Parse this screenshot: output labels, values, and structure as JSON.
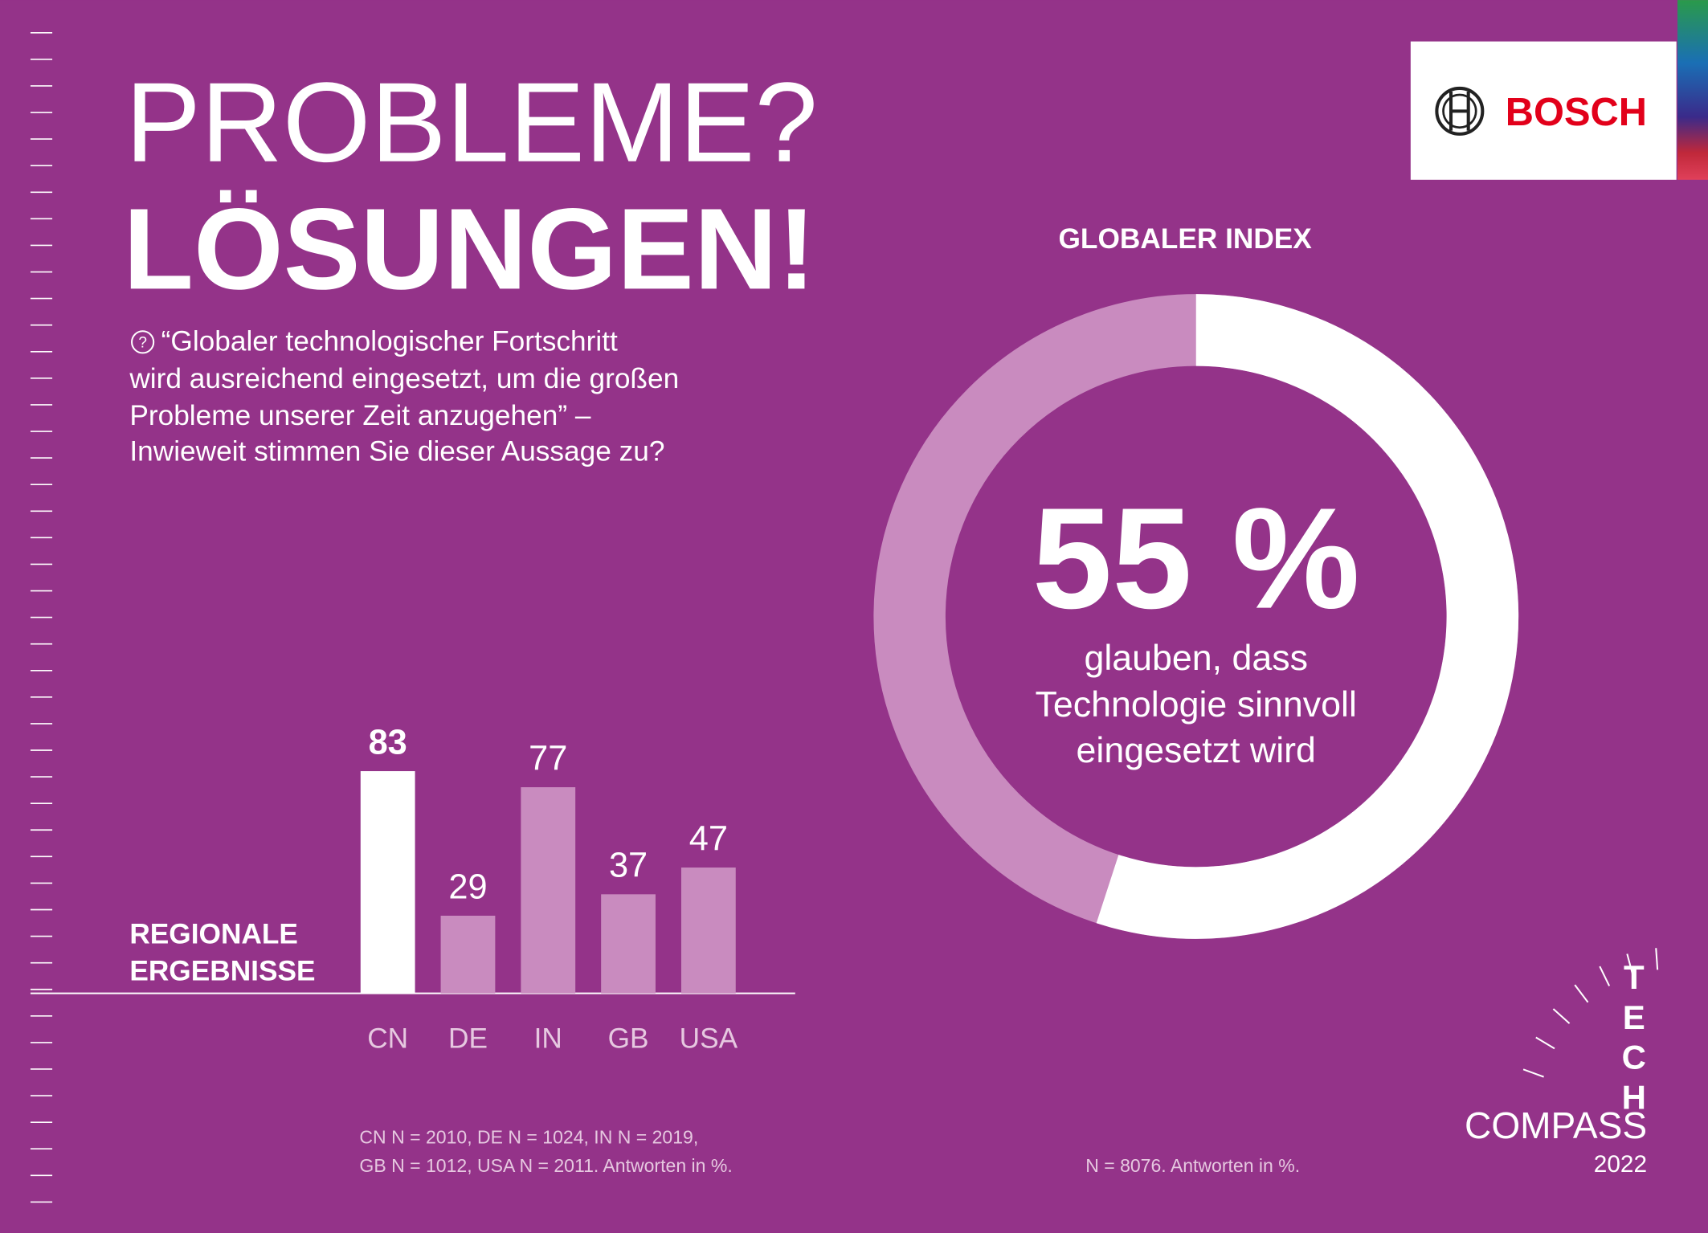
{
  "header": {
    "title_line1": "PROBLEME?",
    "title_line2": "LÖSUNGEN!",
    "question": [
      "“Globaler technologischer Fortschritt",
      "wird ausreichend eingesetzt, um die großen",
      "Probleme unserer Zeit anzugehen” –",
      "Inwieweit stimmen Sie dieser Aussage zu?"
    ]
  },
  "logo": "BOSCH",
  "brand": {
    "tech": "TECH",
    "compass": "COMPASS",
    "year": "2022"
  },
  "chart_data": [
    {
      "type": "bar",
      "title": [
        "REGIONALE",
        "ERGEBNISSE"
      ],
      "categories": [
        "CN",
        "DE",
        "IN",
        "GB",
        "USA"
      ],
      "values": [
        83,
        29,
        77,
        37,
        47
      ],
      "colors": [
        "#ffffff",
        "#c98bbf",
        "#c98bbf",
        "#c98bbf",
        "#c98bbf"
      ],
      "note": [
        "CN N = 2010, DE N = 1024, IN N = 2019,",
        "GB N = 1012, USA N = 2011. Antworten in %."
      ]
    },
    {
      "type": "donut",
      "title": "GLOBALER INDEX",
      "value": 55,
      "value_label": "55 %",
      "color": "#ffffff",
      "rest_color": "#c98bbf",
      "subtitle": [
        "glauben, dass",
        "Technologie sinnvoll",
        "eingesetzt wird"
      ],
      "note": "N = 8076. Antworten in %."
    }
  ]
}
